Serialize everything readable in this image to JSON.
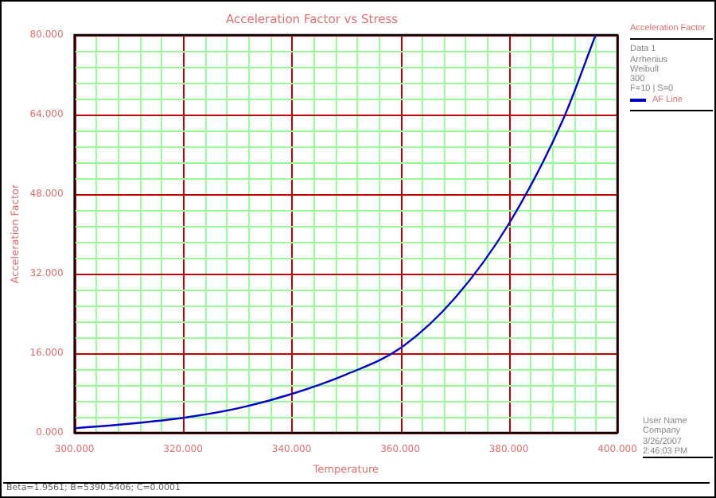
{
  "chart_data": {
    "type": "line",
    "title": "Acceleration Factor vs Stress",
    "xlabel": "Temperature",
    "ylabel": "Acceleration Factor",
    "legend_title": "Acceleration Factor",
    "legend": "top right",
    "x": [
      300,
      310,
      320,
      330,
      340,
      350,
      360,
      370,
      380,
      390,
      396
    ],
    "series": [
      {
        "name": "AF Line",
        "color": "#0000cc",
        "values": [
          0.9,
          1.8,
          3,
          4.9,
          7.8,
          11.7,
          17,
          27,
          42,
          63,
          80
        ]
      }
    ],
    "xlim": [
      300,
      400
    ],
    "xticks": [
      {
        "value": 300,
        "label": "300.000"
      },
      {
        "value": 304,
        "label": null
      },
      {
        "value": 308,
        "label": null
      },
      {
        "value": 312,
        "label": null
      },
      {
        "value": 316,
        "label": null
      },
      {
        "value": 320,
        "label": "320.000"
      },
      {
        "value": 324,
        "label": null
      },
      {
        "value": 328,
        "label": null
      },
      {
        "value": 332,
        "label": null
      },
      {
        "value": 336,
        "label": null
      },
      {
        "value": 340,
        "label": "340.000"
      },
      {
        "value": 344,
        "label": null
      },
      {
        "value": 348,
        "label": null
      },
      {
        "value": 352,
        "label": null
      },
      {
        "value": 356,
        "label": null
      },
      {
        "value": 360,
        "label": "360.000"
      },
      {
        "value": 364,
        "label": null
      },
      {
        "value": 368,
        "label": null
      },
      {
        "value": 372,
        "label": null
      },
      {
        "value": 376,
        "label": null
      },
      {
        "value": 380,
        "label": "380.000"
      },
      {
        "value": 384,
        "label": null
      },
      {
        "value": 388,
        "label": null
      },
      {
        "value": 392,
        "label": null
      },
      {
        "value": 396,
        "label": null
      },
      {
        "value": 400,
        "label": "400.000"
      }
    ],
    "ylim": [
      0,
      80
    ],
    "yticks": [
      {
        "value": 0,
        "label": "0.000"
      },
      {
        "value": 3.2,
        "label": null
      },
      {
        "value": 6.4,
        "label": null
      },
      {
        "value": 9.6,
        "label": null
      },
      {
        "value": 12.8,
        "label": null
      },
      {
        "value": 16,
        "label": "16.000"
      },
      {
        "value": 19.2,
        "label": null
      },
      {
        "value": 22.4,
        "label": null
      },
      {
        "value": 25.6,
        "label": null
      },
      {
        "value": 28.8,
        "label": null
      },
      {
        "value": 32,
        "label": "32.000"
      },
      {
        "value": 35.2,
        "label": null
      },
      {
        "value": 38.4,
        "label": null
      },
      {
        "value": 41.6,
        "label": null
      },
      {
        "value": 44.8,
        "label": null
      },
      {
        "value": 48,
        "label": "48.000"
      },
      {
        "value": 51.2,
        "label": null
      },
      {
        "value": 54.4,
        "label": null
      },
      {
        "value": 57.6,
        "label": null
      },
      {
        "value": 60.8,
        "label": null
      },
      {
        "value": 64,
        "label": "64.000"
      },
      {
        "value": 67.2,
        "label": null
      },
      {
        "value": 70.4,
        "label": null
      },
      {
        "value": 73.6,
        "label": null
      },
      {
        "value": 76.8,
        "label": null
      },
      {
        "value": 80,
        "label": "80.000"
      }
    ],
    "grid": true,
    "marker": "none",
    "line_style": "solid",
    "annotations": [
      "Data 1",
      "Arrhenius",
      "Weibull",
      "300",
      "F=10 | S=0",
      "User Name",
      "Company",
      "3/26/2007",
      "2:46:03 PM",
      "Beta=1.9561; B=5390.5406; C=0.0001"
    ]
  }
}
